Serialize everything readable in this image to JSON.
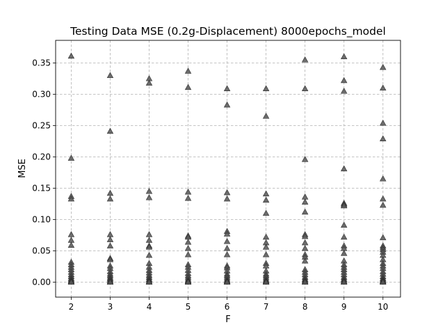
{
  "chart_data": {
    "type": "scatter",
    "title": "Testing Data MSE (0.2g-Displacement) 8000epochs_model",
    "xlabel": "F",
    "ylabel": "MSE",
    "xlim": [
      1.6,
      10.45
    ],
    "ylim": [
      -0.024,
      0.386
    ],
    "xticks": [
      2,
      3,
      4,
      5,
      6,
      7,
      8,
      9,
      10
    ],
    "yticks": [
      0.0,
      0.05,
      0.1,
      0.15,
      0.2,
      0.25,
      0.3,
      0.35
    ],
    "ytick_labels": [
      "0.00",
      "0.05",
      "0.10",
      "0.15",
      "0.20",
      "0.25",
      "0.30",
      "0.35"
    ],
    "grid": true,
    "marker": "triangle-up",
    "marker_color": "#555555",
    "series": [
      {
        "x": 2,
        "y": [
          0.361,
          0.198,
          0.137,
          0.133,
          0.076,
          0.067,
          0.059,
          0.032,
          0.028,
          0.024,
          0.02,
          0.016,
          0.012,
          0.009,
          0.006,
          0.004,
          0.002,
          0.001,
          0.0
        ]
      },
      {
        "x": 3,
        "y": [
          0.33,
          0.241,
          0.142,
          0.133,
          0.076,
          0.068,
          0.058,
          0.038,
          0.036,
          0.026,
          0.022,
          0.017,
          0.013,
          0.01,
          0.007,
          0.005,
          0.003,
          0.001,
          0.0
        ]
      },
      {
        "x": 4,
        "y": [
          0.325,
          0.318,
          0.145,
          0.135,
          0.076,
          0.067,
          0.058,
          0.056,
          0.043,
          0.03,
          0.024,
          0.019,
          0.015,
          0.011,
          0.008,
          0.005,
          0.003,
          0.001,
          0.0
        ]
      },
      {
        "x": 5,
        "y": [
          0.337,
          0.311,
          0.144,
          0.134,
          0.074,
          0.072,
          0.064,
          0.054,
          0.044,
          0.028,
          0.024,
          0.019,
          0.014,
          0.01,
          0.007,
          0.004,
          0.002,
          0.001,
          0.0
        ]
      },
      {
        "x": 6,
        "y": [
          0.309,
          0.283,
          0.143,
          0.133,
          0.081,
          0.077,
          0.065,
          0.054,
          0.044,
          0.026,
          0.023,
          0.018,
          0.013,
          0.01,
          0.007,
          0.004,
          0.002,
          0.001,
          0.0
        ]
      },
      {
        "x": 7,
        "y": [
          0.309,
          0.265,
          0.141,
          0.131,
          0.11,
          0.072,
          0.063,
          0.056,
          0.044,
          0.03,
          0.026,
          0.018,
          0.013,
          0.01,
          0.007,
          0.004,
          0.002,
          0.001,
          0.0
        ]
      },
      {
        "x": 8,
        "y": [
          0.355,
          0.309,
          0.196,
          0.136,
          0.128,
          0.112,
          0.076,
          0.073,
          0.063,
          0.054,
          0.044,
          0.04,
          0.034,
          0.02,
          0.016,
          0.012,
          0.008,
          0.005,
          0.003,
          0.001,
          0.0
        ]
      },
      {
        "x": 9,
        "y": [
          0.36,
          0.322,
          0.305,
          0.181,
          0.126,
          0.124,
          0.122,
          0.091,
          0.072,
          0.058,
          0.054,
          0.046,
          0.034,
          0.028,
          0.024,
          0.02,
          0.016,
          0.012,
          0.008,
          0.005,
          0.003,
          0.001,
          0.0
        ]
      },
      {
        "x": 10,
        "y": [
          0.343,
          0.31,
          0.254,
          0.229,
          0.165,
          0.133,
          0.123,
          0.071,
          0.058,
          0.055,
          0.052,
          0.048,
          0.043,
          0.036,
          0.03,
          0.026,
          0.022,
          0.017,
          0.013,
          0.009,
          0.006,
          0.004,
          0.002,
          0.001,
          0.0
        ]
      }
    ]
  }
}
